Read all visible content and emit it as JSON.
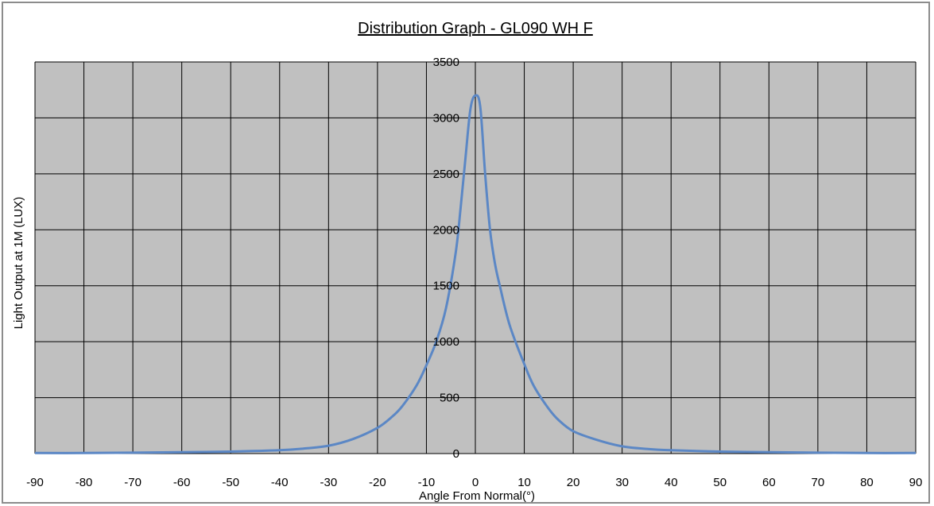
{
  "chart_data": {
    "type": "line",
    "title": "Distribution Graph - GL090 WH F",
    "xlabel": "Angle From Normal(°)",
    "ylabel": "Light Output at 1M (LUX)",
    "xlim": [
      -90,
      90
    ],
    "ylim": [
      0,
      3500
    ],
    "x_ticks": [
      "-90",
      "-80",
      "-70",
      "-60",
      "-50",
      "-40",
      "-30",
      "-20",
      "-10",
      "0",
      "10",
      "20",
      "30",
      "40",
      "50",
      "60",
      "70",
      "80",
      "90"
    ],
    "y_ticks": [
      "0",
      "500",
      "1000",
      "1500",
      "2000",
      "2500",
      "3000",
      "3500"
    ],
    "grid": true,
    "legend": "none",
    "colors": {
      "plot_background": "#c0c0c0",
      "grid": "#000000",
      "line": "#5b87c5"
    },
    "series": [
      {
        "x": [
          -90,
          -80,
          -70,
          -60,
          -50,
          -40,
          -35,
          -30,
          -25,
          -20,
          -17,
          -15,
          -12,
          -10,
          -8,
          -6,
          -4,
          -3,
          -2,
          -1,
          0,
          1,
          2,
          3,
          4,
          5,
          7,
          10,
          12,
          15,
          17,
          20,
          25,
          30,
          35,
          40,
          50,
          60,
          70,
          80,
          90
        ],
        "y": [
          5,
          5,
          8,
          12,
          18,
          30,
          45,
          70,
          130,
          230,
          330,
          420,
          610,
          790,
          1000,
          1300,
          1800,
          2200,
          2650,
          3080,
          3200,
          3100,
          2500,
          2000,
          1700,
          1500,
          1150,
          800,
          600,
          400,
          300,
          200,
          120,
          65,
          42,
          30,
          18,
          12,
          8,
          5,
          5
        ]
      }
    ]
  }
}
